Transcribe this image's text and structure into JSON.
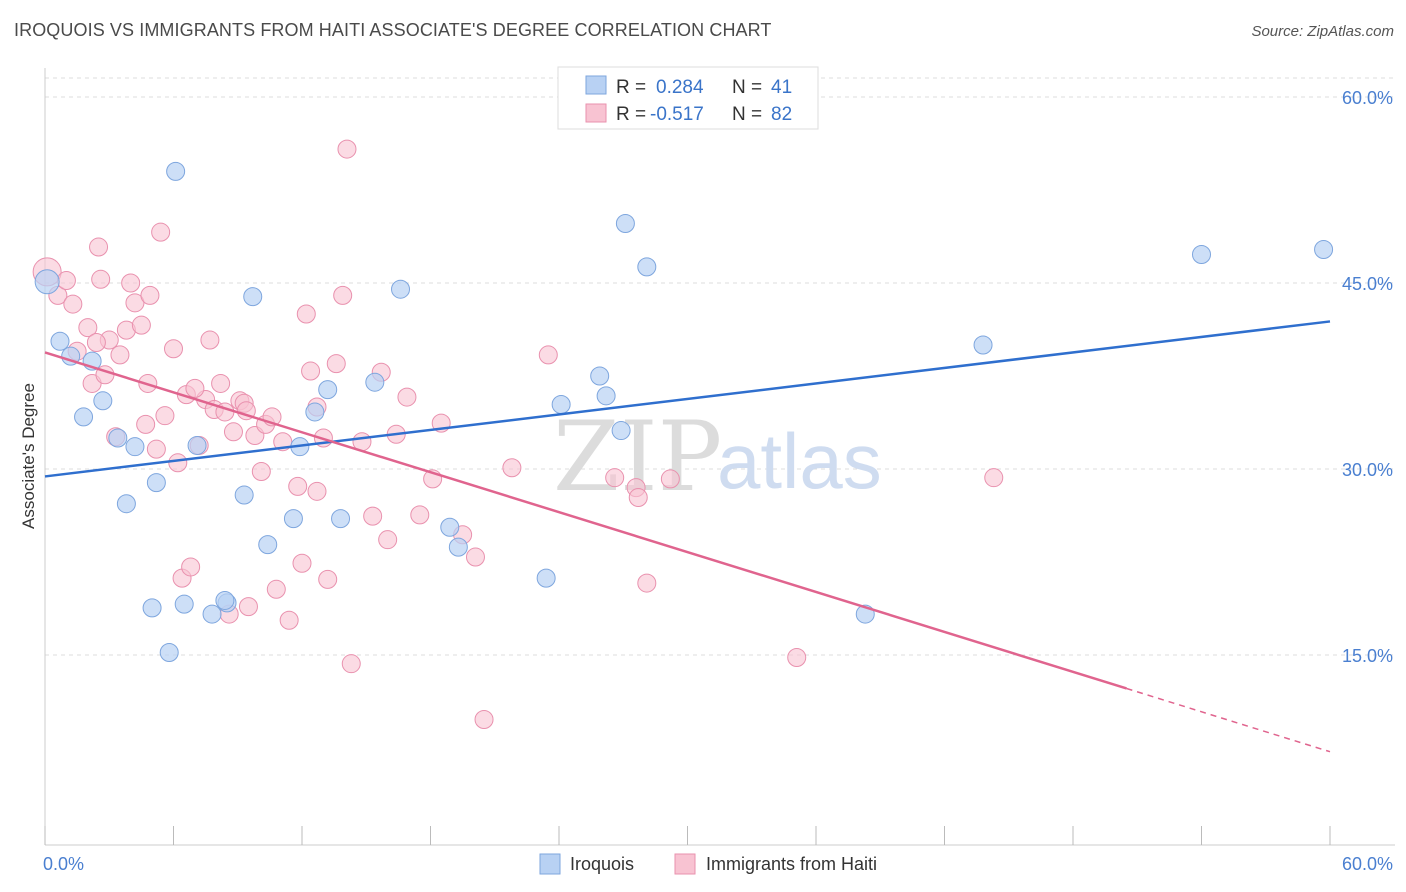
{
  "header": {
    "title": "IROQUOIS VS IMMIGRANTS FROM HAITI ASSOCIATE'S DEGREE CORRELATION CHART",
    "source": "Source: ZipAtlas.com"
  },
  "watermark": {
    "zip": "ZIP",
    "atlas": "atlas"
  },
  "colors": {
    "iroquois_fill": "#b8d1f3",
    "iroquois_stroke": "#7ea6de",
    "iroquois_line": "#2f6fce",
    "haiti_fill": "#f8c3d2",
    "haiti_stroke": "#e991ae",
    "haiti_line": "#e0648e",
    "grid": "#dddddd",
    "tick_text": "#4a7fd0"
  },
  "stats_legend": {
    "rows": [
      {
        "r_label": "R =",
        "r_value": "0.284",
        "n_label": "N =",
        "n_value": "41"
      },
      {
        "r_label": "R =",
        "r_value": "-0.517",
        "n_label": "N =",
        "n_value": "82"
      }
    ]
  },
  "chart_data": {
    "type": "scatter",
    "title": "IROQUOIS VS IMMIGRANTS FROM HAITI ASSOCIATE'S DEGREE CORRELATION CHART",
    "xlabel": "",
    "ylabel": "Associate's Degree",
    "xlim": [
      0,
      60
    ],
    "ylim": [
      0,
      60
    ],
    "x_tick_labels": [
      "0.0%",
      "60.0%"
    ],
    "y_tick_values": [
      15,
      30,
      45,
      60
    ],
    "y_tick_labels": [
      "15.0%",
      "30.0%",
      "45.0%",
      "60.0%"
    ],
    "legend": [
      "Iroquois",
      "Immigrants from Haiti"
    ],
    "series": [
      {
        "name": "Iroquois",
        "r": 0.284,
        "n": 41,
        "trend": {
          "x": [
            0,
            60
          ],
          "y": [
            29.4,
            41.9
          ]
        },
        "points": [
          [
            0.1,
            45.1
          ],
          [
            0.7,
            40.3
          ],
          [
            2.2,
            38.7
          ],
          [
            1.8,
            34.2
          ],
          [
            1.2,
            39.1
          ],
          [
            2.7,
            35.5
          ],
          [
            3.4,
            32.5
          ],
          [
            4.2,
            31.8
          ],
          [
            3.8,
            27.2
          ],
          [
            5.2,
            28.9
          ],
          [
            6.1,
            54.0
          ],
          [
            7.1,
            31.9
          ],
          [
            5.0,
            18.8
          ],
          [
            6.5,
            19.1
          ],
          [
            7.8,
            18.3
          ],
          [
            8.5,
            19.2
          ],
          [
            5.8,
            15.2
          ],
          [
            9.3,
            27.9
          ],
          [
            9.7,
            43.9
          ],
          [
            10.4,
            23.9
          ],
          [
            11.6,
            26.0
          ],
          [
            11.9,
            31.8
          ],
          [
            12.6,
            34.6
          ],
          [
            13.2,
            36.4
          ],
          [
            13.8,
            26.0
          ],
          [
            15.4,
            37.0
          ],
          [
            16.6,
            44.5
          ],
          [
            18.9,
            25.3
          ],
          [
            19.3,
            23.7
          ],
          [
            23.4,
            21.2
          ],
          [
            24.1,
            35.2
          ],
          [
            25.9,
            37.5
          ],
          [
            26.2,
            35.9
          ],
          [
            26.9,
            33.1
          ],
          [
            27.1,
            49.8
          ],
          [
            28.1,
            46.3
          ],
          [
            38.3,
            18.3
          ],
          [
            43.8,
            40.0
          ],
          [
            54.0,
            47.3
          ],
          [
            59.7,
            47.7
          ],
          [
            8.4,
            19.4
          ]
        ]
      },
      {
        "name": "Immigrants from Haiti",
        "r": -0.517,
        "n": 82,
        "trend": {
          "x": [
            0,
            50.5
          ],
          "y": [
            39.4,
            12.3
          ]
        },
        "trend_dashed": {
          "x": [
            50.5,
            60
          ],
          "y": [
            12.3,
            7.2
          ]
        },
        "points": [
          [
            0.1,
            45.9
          ],
          [
            0.6,
            44.0
          ],
          [
            1.0,
            45.2
          ],
          [
            1.3,
            43.3
          ],
          [
            1.5,
            39.5
          ],
          [
            2.0,
            41.4
          ],
          [
            2.2,
            36.9
          ],
          [
            2.5,
            47.9
          ],
          [
            2.6,
            45.3
          ],
          [
            2.8,
            37.6
          ],
          [
            3.0,
            40.4
          ],
          [
            3.3,
            32.6
          ],
          [
            3.5,
            39.2
          ],
          [
            3.8,
            41.2
          ],
          [
            4.0,
            45.0
          ],
          [
            4.2,
            43.4
          ],
          [
            4.5,
            41.6
          ],
          [
            4.7,
            33.6
          ],
          [
            4.8,
            36.9
          ],
          [
            5.2,
            31.6
          ],
          [
            5.4,
            49.1
          ],
          [
            5.6,
            34.3
          ],
          [
            6.0,
            39.7
          ],
          [
            6.2,
            30.5
          ],
          [
            6.4,
            21.2
          ],
          [
            6.6,
            36.0
          ],
          [
            6.8,
            22.1
          ],
          [
            7.2,
            31.9
          ],
          [
            7.5,
            35.6
          ],
          [
            7.7,
            40.4
          ],
          [
            7.9,
            34.8
          ],
          [
            8.2,
            36.9
          ],
          [
            8.4,
            34.6
          ],
          [
            8.6,
            18.3
          ],
          [
            8.8,
            33.0
          ],
          [
            9.1,
            35.5
          ],
          [
            9.3,
            35.3
          ],
          [
            9.5,
            18.9
          ],
          [
            9.8,
            32.7
          ],
          [
            10.1,
            29.8
          ],
          [
            10.3,
            33.6
          ],
          [
            10.6,
            34.2
          ],
          [
            10.8,
            20.3
          ],
          [
            11.1,
            32.2
          ],
          [
            11.4,
            17.8
          ],
          [
            11.8,
            28.6
          ],
          [
            12.0,
            22.4
          ],
          [
            12.2,
            42.5
          ],
          [
            12.4,
            37.9
          ],
          [
            12.7,
            28.2
          ],
          [
            13.0,
            32.5
          ],
          [
            13.2,
            21.1
          ],
          [
            13.6,
            38.5
          ],
          [
            13.9,
            44.0
          ],
          [
            14.1,
            55.8
          ],
          [
            14.3,
            14.3
          ],
          [
            14.8,
            32.2
          ],
          [
            15.3,
            26.2
          ],
          [
            15.7,
            37.8
          ],
          [
            16.0,
            24.3
          ],
          [
            16.4,
            32.8
          ],
          [
            16.9,
            35.8
          ],
          [
            17.5,
            26.3
          ],
          [
            18.1,
            29.2
          ],
          [
            18.5,
            33.7
          ],
          [
            19.5,
            24.7
          ],
          [
            20.1,
            22.9
          ],
          [
            20.5,
            9.8
          ],
          [
            21.8,
            30.1
          ],
          [
            23.5,
            39.2
          ],
          [
            26.6,
            29.3
          ],
          [
            27.6,
            28.5
          ],
          [
            27.7,
            27.7
          ],
          [
            29.2,
            29.2
          ],
          [
            28.1,
            20.8
          ],
          [
            35.1,
            14.8
          ],
          [
            44.3,
            29.3
          ],
          [
            12.7,
            35.0
          ],
          [
            9.4,
            34.7
          ],
          [
            7.0,
            36.5
          ],
          [
            4.9,
            44.0
          ],
          [
            2.4,
            40.2
          ]
        ]
      }
    ]
  },
  "bottom_legend": {
    "items": [
      {
        "label": "Iroquois"
      },
      {
        "label": "Immigrants from Haiti"
      }
    ]
  }
}
